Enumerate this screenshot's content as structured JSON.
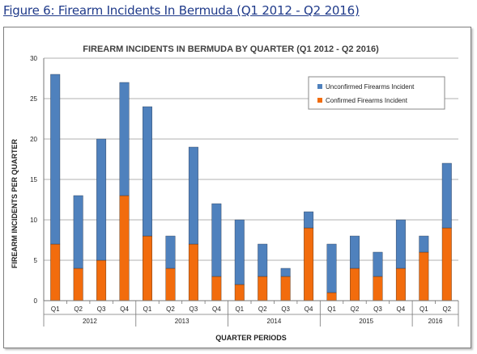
{
  "figure_caption": "Figure 6: Firearm Incidents In Bermuda (Q1 2012 - Q2 2016)",
  "colors": {
    "unconfirmed": "#4f81bd",
    "confirmed": "#f26c0d",
    "grid": "#999999"
  },
  "chart_data": {
    "type": "bar",
    "stacked": true,
    "title": "FIREARM INCIDENTS IN BERMUDA BY QUARTER (Q1 2012 - Q2 2016)",
    "xlabel": "QUARTER PERIODS",
    "ylabel": "FIREARM INCIDENTS PER QUARTER",
    "ylim": [
      0,
      30
    ],
    "yticks": [
      0,
      5,
      10,
      15,
      20,
      25,
      30
    ],
    "grid": true,
    "legend_position": "top-right",
    "categories": [
      "Q1",
      "Q2",
      "Q3",
      "Q4",
      "Q1",
      "Q2",
      "Q3",
      "Q4",
      "Q1",
      "Q2",
      "Q3",
      "Q4",
      "Q1",
      "Q2",
      "Q3",
      "Q4",
      "Q1",
      "Q2"
    ],
    "years": [
      {
        "label": "2012",
        "quarters": 4
      },
      {
        "label": "2013",
        "quarters": 4
      },
      {
        "label": "2014",
        "quarters": 4
      },
      {
        "label": "2015",
        "quarters": 4
      },
      {
        "label": "2016",
        "quarters": 2
      }
    ],
    "series": [
      {
        "name": "Confirmed Firearms Incident",
        "values": [
          7,
          4,
          5,
          13,
          8,
          4,
          7,
          3,
          2,
          3,
          3,
          9,
          1,
          4,
          3,
          4,
          6,
          9
        ]
      },
      {
        "name": "Unconfirmed Firearms Incident",
        "values": [
          21,
          9,
          15,
          14,
          16,
          4,
          12,
          9,
          8,
          4,
          1,
          2,
          6,
          4,
          3,
          6,
          2,
          8
        ]
      }
    ],
    "legend": [
      "Unconfirmed Firearms Incident",
      "Confirmed Firearms Incident"
    ]
  }
}
